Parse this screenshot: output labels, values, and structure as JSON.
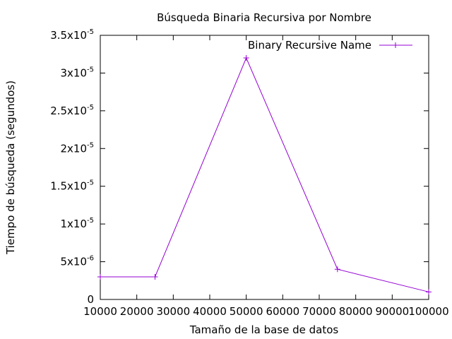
{
  "chart_data": {
    "type": "line",
    "title": "Búsqueda Binaria Recursiva por Nombre",
    "xlabel": "Tamaño de la base de datos",
    "ylabel": "Tiempo de búsqueda (segundos)",
    "xlim": [
      10000,
      100000
    ],
    "ylim": [
      0,
      3.5e-05
    ],
    "x_ticks": [
      10000,
      20000,
      30000,
      40000,
      50000,
      60000,
      70000,
      80000,
      90000,
      100000
    ],
    "x_tick_labels": [
      "10000",
      "20000",
      "30000",
      "40000",
      "50000",
      "60000",
      "70000",
      "80000",
      "90000",
      "100000"
    ],
    "y_ticks": [
      {
        "value": 0,
        "mantissa": "0",
        "exponent": ""
      },
      {
        "value": 5e-06,
        "mantissa": "5x10",
        "exponent": "-6"
      },
      {
        "value": 1e-05,
        "mantissa": "1x10",
        "exponent": "-5"
      },
      {
        "value": 1.5e-05,
        "mantissa": "1.5x10",
        "exponent": "-5"
      },
      {
        "value": 2e-05,
        "mantissa": "2x10",
        "exponent": "-5"
      },
      {
        "value": 2.5e-05,
        "mantissa": "2.5x10",
        "exponent": "-5"
      },
      {
        "value": 3e-05,
        "mantissa": "3x10",
        "exponent": "-5"
      },
      {
        "value": 3.5e-05,
        "mantissa": "3.5x10",
        "exponent": "-5"
      }
    ],
    "grid": false,
    "legend_position": "top-right",
    "series": [
      {
        "name": "Binary Recursive Name",
        "color": "#9400d3",
        "marker": "plus",
        "x": [
          10000,
          25000,
          50000,
          75000,
          100000
        ],
        "y": [
          3e-06,
          3e-06,
          3.2e-05,
          4e-06,
          1e-06
        ]
      }
    ]
  }
}
